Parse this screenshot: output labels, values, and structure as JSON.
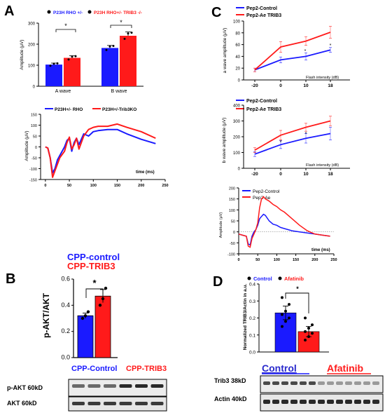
{
  "panels": {
    "A": {
      "letter": "A",
      "bar": {
        "legend": [
          "P23H RHO +/-",
          "P23H RHO+/- TRIB3 -/-"
        ],
        "ylabel": "Amplitude (μV)",
        "yticks": [
          "0",
          "100",
          "200",
          "300"
        ],
        "sig": [
          "*",
          "*"
        ]
      },
      "wave": {
        "legend": [
          "P23H+/- RHO",
          "P23H+/-Trib3KO"
        ],
        "ylabel": "Amplitude (μV)",
        "xlabel": "time (ms)",
        "yticks": [
          "-150",
          "-100",
          "-50",
          "0",
          "50",
          "100",
          "150"
        ],
        "xticks": [
          "0",
          "50",
          "100",
          "150",
          "200",
          "250"
        ]
      }
    },
    "C": {
      "letter": "C",
      "a_wave": {
        "legend": [
          "Pep2-Control",
          "Pep2-Ae TRIB3"
        ],
        "ylabel": "a wave amplitude (μV)",
        "xlabel": "Flash intensity (dB)",
        "yticks": [
          "0",
          "20",
          "40",
          "60",
          "80",
          "100"
        ],
        "xticks": [
          "-20",
          "0",
          "10",
          "18"
        ],
        "sig": [
          "*",
          "*"
        ]
      },
      "b_wave": {
        "legend": [
          "Pep2-Control",
          "Pep2-Ae TRIB3"
        ],
        "ylabel": "b wave amplitude (μV)",
        "xlabel": "Flash intensity (dB)",
        "yticks": [
          "0",
          "100",
          "200",
          "300",
          "400"
        ],
        "xticks": [
          "-20",
          "0",
          "10",
          "18"
        ],
        "sig": [
          "*",
          "*"
        ]
      },
      "trace": {
        "legend": [
          "Pep2-Control",
          "Pep2-Ae"
        ],
        "ylabel": "Amplitude (μV)",
        "xlabel": "time (ms)",
        "yticks": [
          "-100",
          "-50",
          "0",
          "50",
          "100",
          "150",
          "200"
        ],
        "xticks": [
          "0",
          "50",
          "100",
          "150",
          "200",
          "250"
        ]
      }
    },
    "B": {
      "letter": "B",
      "legend_control": "CPP-control",
      "legend_trib3": "CPP-TRIB3",
      "ylabel": "p-AKT/AKT",
      "yticks": [
        "0.0",
        "0.2",
        "0.4",
        "0.6"
      ],
      "sig": "*",
      "blot_header_control": "CPP-Control",
      "blot_header_trib3": "CPP-TRIB3",
      "blot_row1": "p-AKT 60kD",
      "blot_row2": "AKT  60kD"
    },
    "D": {
      "letter": "D",
      "legend": [
        "Control",
        "Afatinib"
      ],
      "ylabel": "Normalized TRIB3/Actin in a.u.",
      "yticks": [
        "0.0",
        "0.1",
        "0.2",
        "0.3",
        "0.4"
      ],
      "sig": "*",
      "blot_header_control": "Control",
      "blot_header_afatinib": "Afatinib",
      "blot_row1": "Trib3 38kD",
      "blot_row2": "Actin 40kD"
    }
  },
  "colors": {
    "blue": "#1a1aff",
    "red": "#ff1a1a",
    "dark": "#000000"
  },
  "chart_data": [
    {
      "type": "bar",
      "categories": [
        "A wave",
        "B wave"
      ],
      "series": [
        {
          "name": "P23H RHO +/-",
          "values": [
            103,
            182
          ],
          "errors": [
            7,
            12
          ]
        },
        {
          "name": "P23H RHO+/- TRIB3 -/-",
          "values": [
            135,
            240
          ],
          "errors": [
            10,
            18
          ]
        }
      ],
      "ylabel": "Amplitude (μV)",
      "ylim": [
        0,
        300
      ]
    },
    {
      "type": "line",
      "series": [
        {
          "name": "P23H+/- RHO",
          "x": [
            0,
            5,
            10,
            15,
            20,
            25,
            30,
            40,
            45,
            50,
            55,
            60,
            65,
            70,
            80,
            90,
            100,
            110,
            130,
            150,
            170,
            200,
            230
          ],
          "y": [
            0,
            -5,
            -50,
            -120,
            -100,
            -60,
            -40,
            0,
            30,
            40,
            -20,
            20,
            40,
            10,
            60,
            50,
            70,
            75,
            80,
            80,
            60,
            35,
            15
          ]
        },
        {
          "name": "P23H+/-Trib3KO",
          "x": [
            0,
            5,
            10,
            15,
            20,
            25,
            30,
            40,
            45,
            50,
            55,
            60,
            65,
            70,
            80,
            90,
            100,
            110,
            130,
            150,
            170,
            200,
            230
          ],
          "y": [
            0,
            -5,
            -50,
            -140,
            -110,
            -80,
            -50,
            -20,
            20,
            45,
            -10,
            10,
            40,
            -10,
            50,
            80,
            90,
            95,
            95,
            105,
            90,
            70,
            40
          ]
        }
      ],
      "xlabel": "time (ms)",
      "ylabel": "Amplitude (μV)",
      "xlim": [
        -10,
        250
      ],
      "ylim": [
        -150,
        150
      ]
    },
    {
      "type": "line",
      "x": [
        -20,
        0,
        10,
        18
      ],
      "series": [
        {
          "name": "Pep2-Control",
          "values": [
            17,
            34,
            40,
            51
          ],
          "errors": [
            3,
            5,
            6,
            4
          ]
        },
        {
          "name": "Pep2-Ae TRIB3",
          "values": [
            17,
            56,
            66,
            81
          ],
          "errors": [
            3,
            9,
            7,
            10
          ]
        }
      ],
      "xlabel": "Flash intensity (dB)",
      "ylabel": "a wave amplitude (μV)",
      "ylim": [
        0,
        100
      ]
    },
    {
      "type": "line",
      "x": [
        -20,
        0,
        10,
        18
      ],
      "series": [
        {
          "name": "Pep2-Control",
          "values": [
            90,
            150,
            190,
            220
          ],
          "errors": [
            15,
            25,
            30,
            40
          ]
        },
        {
          "name": "Pep2-Ae TRIB3",
          "values": [
            115,
            210,
            260,
            300
          ],
          "errors": [
            15,
            30,
            25,
            30
          ]
        }
      ],
      "xlabel": "Flash intensity (dB)",
      "ylabel": "b wave amplitude (μV)",
      "ylim": [
        0,
        400
      ]
    },
    {
      "type": "line",
      "series": [
        {
          "name": "Pep2-Control",
          "x": [
            0,
            10,
            20,
            25,
            30,
            35,
            40,
            45,
            50,
            55,
            60,
            65,
            70,
            80,
            90,
            100,
            110,
            120,
            140,
            160,
            180,
            200,
            220,
            240
          ],
          "y": [
            -10,
            -15,
            -20,
            -55,
            -60,
            -20,
            0,
            10,
            30,
            60,
            70,
            80,
            75,
            50,
            35,
            30,
            20,
            15,
            5,
            0,
            -5,
            -10,
            -15,
            -20
          ]
        },
        {
          "name": "Pep2-Ae",
          "x": [
            0,
            10,
            20,
            25,
            30,
            35,
            40,
            45,
            50,
            55,
            60,
            65,
            70,
            80,
            90,
            100,
            110,
            120,
            140,
            160,
            180,
            200,
            220,
            240
          ],
          "y": [
            -10,
            -15,
            -20,
            -65,
            -70,
            -30,
            -10,
            10,
            40,
            110,
            150,
            160,
            150,
            140,
            125,
            115,
            100,
            90,
            60,
            30,
            5,
            -10,
            -15,
            -20
          ]
        }
      ],
      "xlabel": "time (ms)",
      "ylabel": "Amplitude (μV)",
      "xlim": [
        0,
        250
      ],
      "ylim": [
        -100,
        200
      ]
    },
    {
      "type": "bar",
      "categories": [
        "CPP-control",
        "CPP-TRIB3"
      ],
      "values": [
        0.32,
        0.47
      ],
      "errors": [
        0.02,
        0.05
      ],
      "points": [
        [
          0.3,
          0.32,
          0.35
        ],
        [
          0.4,
          0.45,
          0.53
        ]
      ],
      "ylabel": "p-AKT/AKT",
      "ylim": [
        0,
        0.6
      ]
    },
    {
      "type": "bar",
      "categories": [
        "Control",
        "Afatinib"
      ],
      "values": [
        0.23,
        0.12
      ],
      "errors": [
        0.04,
        0.03
      ],
      "points": [
        [
          0.15,
          0.18,
          0.2,
          0.22,
          0.24,
          0.28,
          0.32
        ],
        [
          0.07,
          0.09,
          0.11,
          0.12,
          0.14,
          0.16,
          0.2
        ]
      ],
      "ylabel": "Normalized TRIB3/Actin in a.u.",
      "ylim": [
        0,
        0.4
      ]
    }
  ]
}
